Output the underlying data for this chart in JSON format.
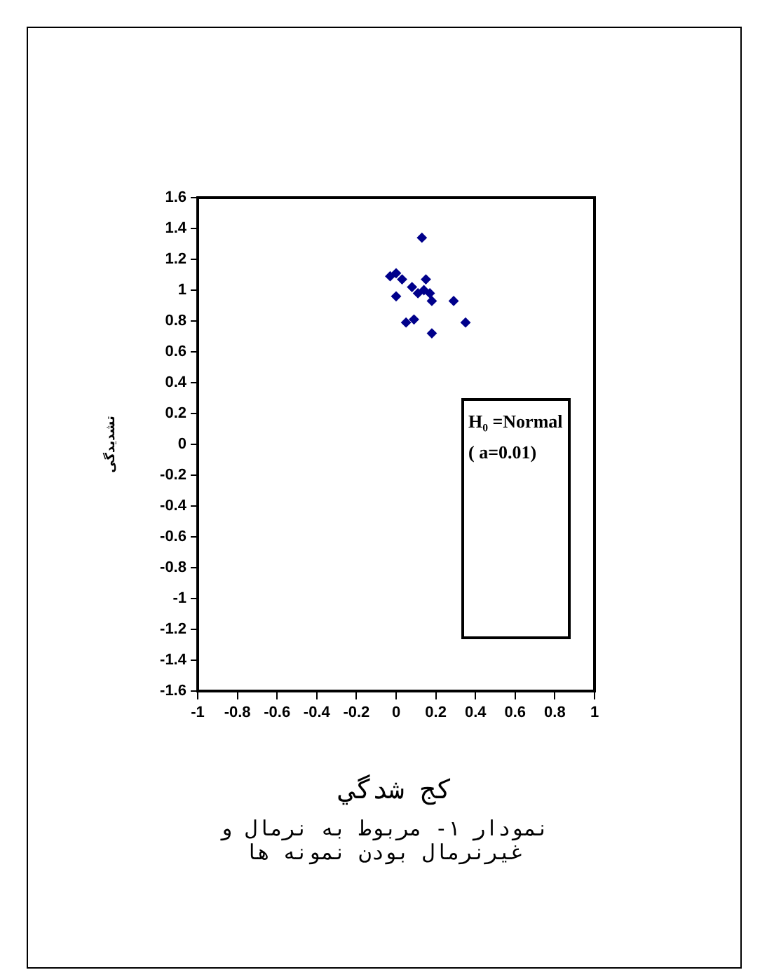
{
  "chart_data": {
    "type": "scatter",
    "xlabel": "کج شدگي",
    "ylabel": "تشدیدگی",
    "x": [
      -0.03,
      0.0,
      0.03,
      0.0,
      0.08,
      0.11,
      0.13,
      0.14,
      0.15,
      0.17,
      0.18,
      0.05,
      0.09,
      0.18,
      0.29,
      0.35
    ],
    "series": [
      {
        "color": "#00008b",
        "values": [
          1.09,
          1.11,
          1.07,
          0.96,
          1.02,
          0.98,
          1.34,
          1.0,
          1.07,
          0.98,
          0.93,
          0.79,
          0.81,
          0.72,
          0.93,
          0.79
        ]
      }
    ],
    "xlim": [
      -1,
      1
    ],
    "xticks": [
      -1,
      -0.8,
      -0.6,
      -0.4,
      -0.2,
      0,
      0.2,
      0.4,
      0.6,
      0.8,
      1
    ],
    "ylim": [
      -1.6,
      1.6
    ],
    "yticks": [
      -1.6,
      -1.4,
      -1.2,
      -1,
      -0.8,
      -0.6,
      -0.4,
      -0.2,
      0,
      0.2,
      0.4,
      0.6,
      0.8,
      1,
      1.2,
      1.4,
      1.6
    ],
    "grid": false,
    "legend": false,
    "marker": "diamond",
    "annotations": [
      "H₀ =Normal ( a=0.01)",
      "نمودار ١- مربوط به نرمال و غيرنرمال بودن نمونه ها"
    ]
  }
}
